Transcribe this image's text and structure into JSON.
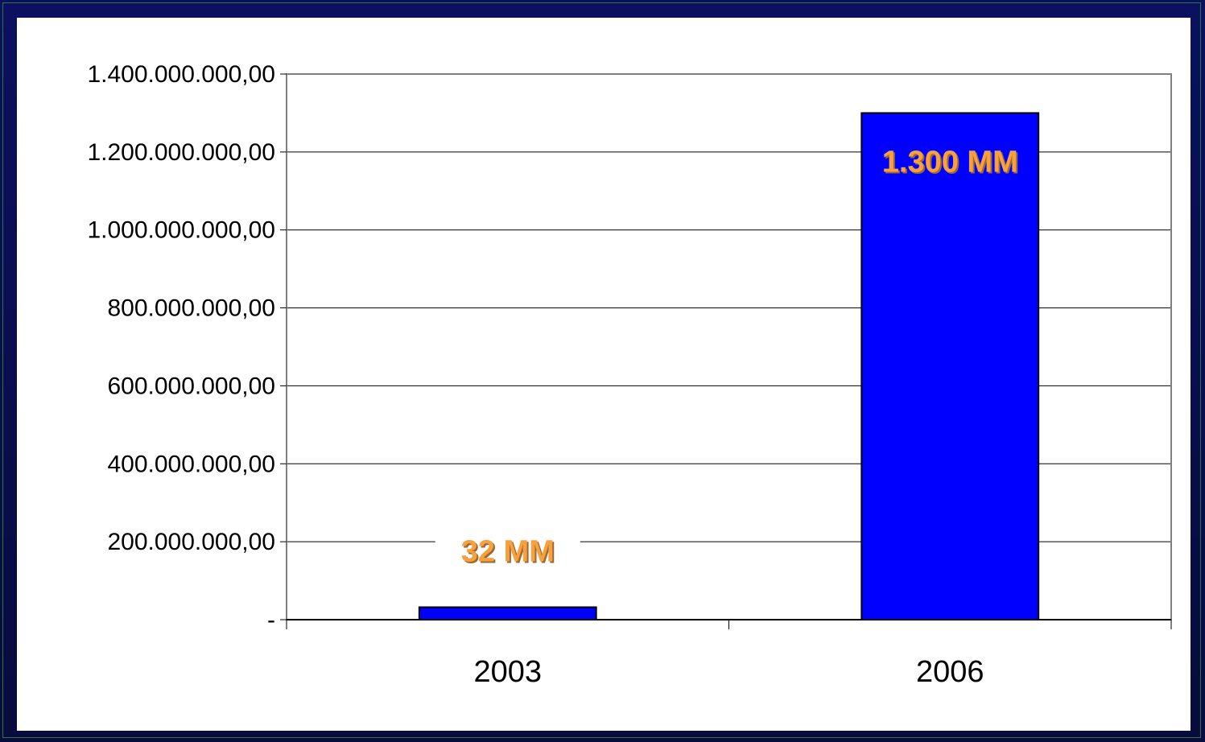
{
  "colors": {
    "background": "#0a0f4a",
    "panel": "#ffffff",
    "bar_fill": "#0000ff",
    "bar_stroke": "#000000",
    "data_label": "#f7a040",
    "gridline": "#000000",
    "plot_border": "#808080"
  },
  "chart_data": {
    "type": "bar",
    "title": "",
    "xlabel": "",
    "ylabel": "",
    "categories": [
      "2003",
      "2006"
    ],
    "values": [
      32000000,
      1300000000
    ],
    "data_labels": [
      "32 MM",
      "1.300 MM"
    ],
    "ylim": [
      0,
      1400000000
    ],
    "yticks": [
      0,
      200000000,
      400000000,
      600000000,
      800000000,
      1000000000,
      1200000000,
      1400000000
    ],
    "ytick_labels": [
      "-",
      "200.000.000,00",
      "400.000.000,00",
      "600.000.000,00",
      "800.000.000,00",
      "1.000.000.000,00",
      "1.200.000.000,00",
      "1.400.000.000,00"
    ],
    "grid": true,
    "legend": "none"
  }
}
